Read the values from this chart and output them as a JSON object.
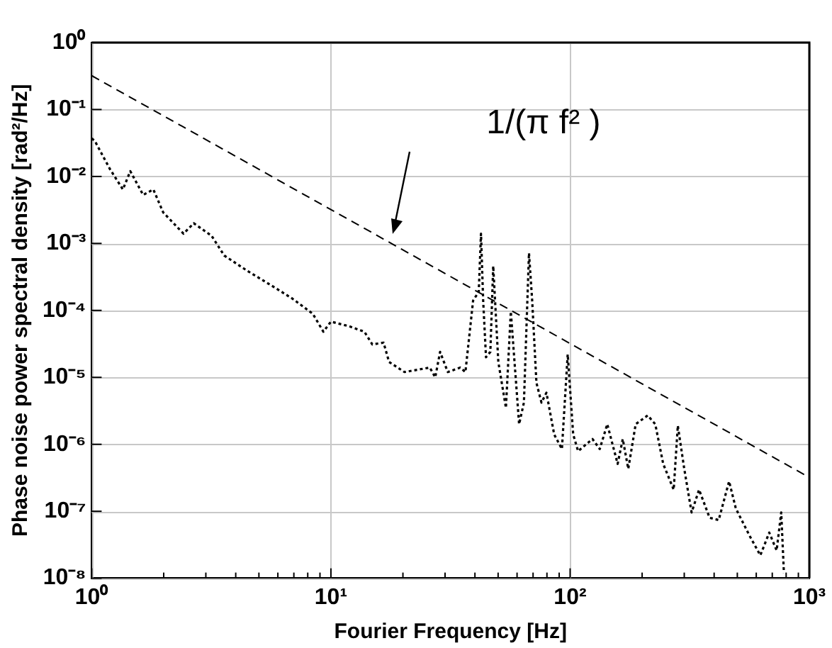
{
  "chart_data": {
    "type": "line",
    "xlabel": "Fourier Frequency [Hz]",
    "ylabel": "Phase noise power spectral density [rad²/Hz]",
    "log": "xy",
    "grid": true,
    "legend": false,
    "marker": "none",
    "xlim": [
      1,
      1000
    ],
    "ylim": [
      1e-08,
      1
    ],
    "xticks": [
      {
        "value": 1,
        "label": "10⁰"
      },
      {
        "value": 2,
        "label": null
      },
      {
        "value": 3,
        "label": null
      },
      {
        "value": 4,
        "label": null
      },
      {
        "value": 5,
        "label": null
      },
      {
        "value": 6,
        "label": null
      },
      {
        "value": 7,
        "label": null
      },
      {
        "value": 8,
        "label": null
      },
      {
        "value": 9,
        "label": null
      },
      {
        "value": 10,
        "label": "10¹"
      },
      {
        "value": 20,
        "label": null
      },
      {
        "value": 30,
        "label": null
      },
      {
        "value": 40,
        "label": null
      },
      {
        "value": 50,
        "label": null
      },
      {
        "value": 60,
        "label": null
      },
      {
        "value": 70,
        "label": null
      },
      {
        "value": 80,
        "label": null
      },
      {
        "value": 90,
        "label": null
      },
      {
        "value": 100,
        "label": "10²"
      },
      {
        "value": 200,
        "label": null
      },
      {
        "value": 300,
        "label": null
      },
      {
        "value": 400,
        "label": null
      },
      {
        "value": 500,
        "label": null
      },
      {
        "value": 600,
        "label": null
      },
      {
        "value": 700,
        "label": null
      },
      {
        "value": 800,
        "label": null
      },
      {
        "value": 900,
        "label": null
      },
      {
        "value": 1000,
        "label": "10³"
      }
    ],
    "yticks": [
      {
        "value": 1e-08,
        "label": "10⁻⁸"
      },
      {
        "value": 1e-07,
        "label": "10⁻⁷"
      },
      {
        "value": 1e-06,
        "label": "10⁻⁶"
      },
      {
        "value": 1e-05,
        "label": "10⁻⁵"
      },
      {
        "value": 0.0001,
        "label": "10⁻⁴"
      },
      {
        "value": 0.001,
        "label": "10⁻³"
      },
      {
        "value": 0.01,
        "label": "10⁻²"
      },
      {
        "value": 0.1,
        "label": "10⁻¹"
      },
      {
        "value": 1,
        "label": "10⁰"
      }
    ],
    "series": [
      {
        "color": "#000000",
        "line_style": "dashed",
        "x": [
          1,
          1000
        ],
        "values": [
          0.32,
          3.2e-07
        ]
      },
      {
        "color": "#000000",
        "line_style": "dotted",
        "x": [
          1.0,
          1.03,
          1.19,
          1.35,
          1.45,
          1.64,
          1.81,
          1.99,
          2.42,
          2.67,
          3.17,
          3.58,
          4.47,
          5.7,
          6.9,
          8.4,
          9.3,
          10,
          11.9,
          13.8,
          14.9,
          16.6,
          17.5,
          20.3,
          25.9,
          27.3,
          28.6,
          30.8,
          34.7,
          36.5,
          39.3,
          41.5,
          42.4,
          43.3,
          44.5,
          46.4,
          47.7,
          50.1,
          53.9,
          56.5,
          61.2,
          64.1,
          67.3,
          69.4,
          72.3,
          75.9,
          79.6,
          85.8,
          92.4,
          97.7,
          103,
          108,
          124,
          133,
          143,
          158,
          166,
          175,
          188,
          211,
          227,
          245,
          271,
          282,
          300,
          322,
          346,
          383,
          418,
          462,
          493,
          561,
          624,
          680,
          730,
          763,
          783
        ],
        "values": [
          0.037,
          0.034,
          0.013,
          0.0064,
          0.012,
          0.0053,
          0.0064,
          0.0029,
          0.0014,
          0.002,
          0.0013,
          0.00066,
          0.00039,
          0.00023,
          0.00015,
          8.9e-05,
          4.8e-05,
          6.8e-05,
          5.8e-05,
          4.8e-05,
          3.1e-05,
          3.3e-05,
          1.7e-05,
          1.2e-05,
          1.4e-05,
          1e-05,
          2.4e-05,
          1.2e-05,
          1.4e-05,
          1.2e-05,
          0.00014,
          0.00019,
          0.0014,
          0.00014,
          2e-05,
          2.4e-05,
          0.00046,
          1.7e-05,
          3.5e-06,
          9.6e-05,
          2e-06,
          4.2e-06,
          0.00072,
          0.00014,
          8.3e-06,
          4.2e-06,
          5.9e-06,
          1.4e-06,
          8.5e-07,
          2.2e-05,
          1.4e-06,
          7.9e-07,
          1.2e-06,
          8.5e-07,
          2e-06,
          5.1e-07,
          1.2e-06,
          4.3e-07,
          2e-06,
          2.7e-06,
          2e-06,
          5.1e-07,
          2.1e-07,
          1.9e-06,
          4.3e-07,
          9.6e-08,
          2.1e-07,
          8e-08,
          7.4e-08,
          2.8e-07,
          1.1e-07,
          4.4e-08,
          2.2e-08,
          4.8e-08,
          2.6e-08,
          9.6e-08,
          1.2e-08
        ]
      }
    ],
    "annotations": [
      "1/(π f² )"
    ]
  }
}
